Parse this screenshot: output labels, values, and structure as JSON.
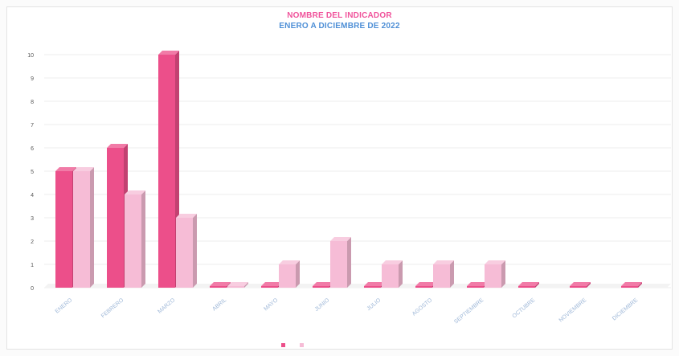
{
  "chart_data": {
    "type": "bar",
    "title": "NOMBRE DEL INDICADOR",
    "subtitle": "ENERO A DICIEMBRE DE 2022",
    "categories": [
      "ENERO",
      "FEBRERO",
      "MARZO",
      "ABRIL",
      "MAYO",
      "JUNIO",
      "JULIO",
      "AGOSTO",
      "SEPTIEMBRE",
      "OCTUBRE",
      "NOVIEMBRE",
      "DICIEMBRE"
    ],
    "series": [
      {
        "name": "",
        "color": "#ec4f8a",
        "values": [
          5,
          6,
          10,
          0,
          0,
          0,
          0,
          0,
          0,
          0,
          0,
          0
        ]
      },
      {
        "name": "",
        "color": "#f6bcd6",
        "values": [
          5,
          4,
          3,
          0,
          1,
          2,
          1,
          1,
          1,
          null,
          null,
          null
        ]
      }
    ],
    "ylim": [
      0,
      10
    ],
    "yticks": [
      0,
      1,
      2,
      3,
      4,
      5,
      6,
      7,
      8,
      9,
      10
    ],
    "xlabel": "",
    "ylabel": "",
    "grid": true,
    "legend": "bottom-center"
  }
}
